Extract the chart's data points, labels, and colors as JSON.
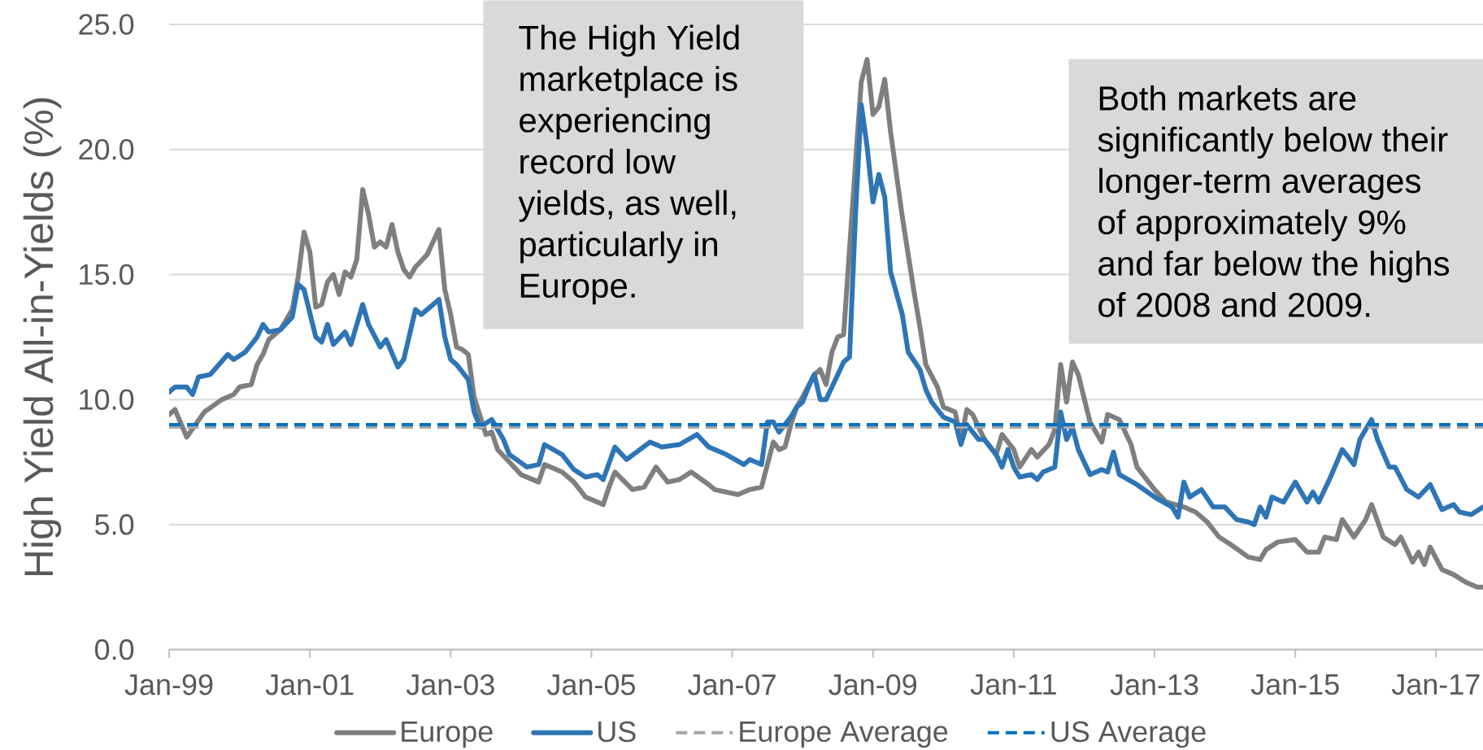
{
  "chart_data": {
    "type": "line",
    "ylabel": "High Yield All-in-Yields (%)",
    "annotations": [
      "The High Yield marketplace is experiencing record low yields, as well, particularly in Europe.",
      "Both markets are significantly below their longer-term averages of approximately 9% and far below the highs of 2008 and 2009."
    ],
    "xlim": [
      "1999-01",
      "2017-09"
    ],
    "xticks": [
      {
        "value": "1999-01",
        "label": "Jan-99"
      },
      {
        "value": "2001-01",
        "label": "Jan-01"
      },
      {
        "value": "2003-01",
        "label": "Jan-03"
      },
      {
        "value": "2005-01",
        "label": "Jan-05"
      },
      {
        "value": "2007-01",
        "label": "Jan-07"
      },
      {
        "value": "2009-01",
        "label": "Jan-09"
      },
      {
        "value": "2011-01",
        "label": "Jan-11"
      },
      {
        "value": "2013-01",
        "label": "Jan-13"
      },
      {
        "value": "2015-01",
        "label": "Jan-15"
      },
      {
        "value": "2017-01",
        "label": "Jan-17"
      }
    ],
    "ylim": [
      0,
      25
    ],
    "yticks": [
      {
        "value": 0,
        "label": "0.0"
      },
      {
        "value": 5,
        "label": "5.0"
      },
      {
        "value": 10,
        "label": "10.0"
      },
      {
        "value": 15,
        "label": "15.0"
      },
      {
        "value": 20,
        "label": "20.0"
      },
      {
        "value": 25,
        "label": "25.0"
      }
    ],
    "grid": "y",
    "legend": "bottom",
    "ref_lines": [
      {
        "axis": "y",
        "value": 8.9,
        "label": "Europe Average",
        "color": "#a6a6a6",
        "line_style": "dashed"
      },
      {
        "axis": "y",
        "value": 9.0,
        "label": "US Average",
        "color": "#0070c0",
        "line_style": "dashed"
      }
    ],
    "series": [
      {
        "name": "Europe",
        "color": "#7f7f7f",
        "x": [
          "1999-01",
          "1999-02",
          "1999-04",
          "1999-07",
          "1999-10",
          "1999-12",
          "2000-01",
          "2000-03",
          "2000-04",
          "2000-05",
          "2000-06",
          "2000-08",
          "2000-10",
          "2000-11",
          "2000-12",
          "2001-01",
          "2001-02",
          "2001-03",
          "2001-04",
          "2001-05",
          "2001-06",
          "2001-07",
          "2001-08",
          "2001-09",
          "2001-10",
          "2001-11",
          "2001-12",
          "2002-01",
          "2002-02",
          "2002-03",
          "2002-04",
          "2002-05",
          "2002-06",
          "2002-07",
          "2002-09",
          "2002-11",
          "2002-12",
          "2003-01",
          "2003-02",
          "2003-03",
          "2003-04",
          "2003-05",
          "2003-07",
          "2003-08",
          "2003-09",
          "2003-11",
          "2004-01",
          "2004-04",
          "2004-05",
          "2004-08",
          "2004-10",
          "2004-12",
          "2005-03",
          "2005-04",
          "2005-05",
          "2005-08",
          "2005-10",
          "2005-12",
          "2006-02",
          "2006-04",
          "2006-06",
          "2006-09",
          "2006-10",
          "2007-02",
          "2007-04",
          "2007-06",
          "2007-08",
          "2007-09",
          "2007-10",
          "2007-11",
          "2007-12",
          "2008-01",
          "2008-03",
          "2008-04",
          "2008-05",
          "2008-06",
          "2008-07",
          "2008-08",
          "2008-10",
          "2008-11",
          "2008-12",
          "2009-01",
          "2009-02",
          "2009-03",
          "2009-04",
          "2009-06",
          "2009-08",
          "2009-09",
          "2009-10",
          "2009-12",
          "2010-01",
          "2010-03",
          "2010-04",
          "2010-05",
          "2010-06",
          "2010-08",
          "2010-10",
          "2010-11",
          "2011-01",
          "2011-02",
          "2011-04",
          "2011-05",
          "2011-07",
          "2011-08",
          "2011-09",
          "2011-10",
          "2011-11",
          "2011-12",
          "2012-02",
          "2012-04",
          "2012-05",
          "2012-07",
          "2012-09",
          "2012-10",
          "2013-01",
          "2013-03",
          "2013-06",
          "2013-08",
          "2013-10",
          "2013-12",
          "2014-02",
          "2014-05",
          "2014-07",
          "2014-08",
          "2014-10",
          "2015-01",
          "2015-03",
          "2015-05",
          "2015-06",
          "2015-08",
          "2015-09",
          "2015-11",
          "2016-01",
          "2016-02",
          "2016-04",
          "2016-06",
          "2016-07",
          "2016-09",
          "2016-10",
          "2016-11",
          "2016-12",
          "2017-02",
          "2017-04",
          "2017-06",
          "2017-08",
          "2017-09"
        ],
        "values": [
          9.4,
          9.6,
          8.5,
          9.5,
          10.0,
          10.2,
          10.5,
          10.6,
          11.4,
          11.8,
          12.4,
          12.8,
          13.6,
          14.9,
          16.7,
          15.9,
          13.7,
          13.8,
          14.7,
          15.0,
          14.2,
          15.1,
          14.9,
          15.6,
          18.4,
          17.4,
          16.1,
          16.3,
          16.1,
          17.0,
          15.9,
          15.2,
          14.9,
          15.3,
          15.8,
          16.8,
          14.4,
          13.4,
          12.1,
          12.0,
          11.8,
          10.1,
          8.6,
          8.7,
          8.0,
          7.5,
          7.0,
          6.7,
          7.4,
          7.1,
          6.7,
          6.1,
          5.8,
          6.5,
          7.1,
          6.4,
          6.5,
          7.3,
          6.7,
          6.8,
          7.1,
          6.6,
          6.4,
          6.2,
          6.4,
          6.5,
          8.3,
          8.0,
          8.1,
          9.0,
          9.7,
          10.1,
          11.0,
          11.2,
          10.6,
          11.9,
          12.5,
          12.6,
          19.4,
          22.7,
          23.6,
          21.4,
          21.7,
          22.8,
          20.7,
          17.3,
          14.3,
          12.9,
          11.4,
          10.5,
          9.7,
          9.5,
          8.4,
          9.6,
          9.4,
          8.4,
          7.8,
          8.6,
          8.0,
          7.3,
          8.0,
          7.7,
          8.2,
          8.8,
          11.4,
          9.9,
          11.5,
          11.0,
          9.1,
          8.3,
          9.4,
          9.2,
          8.2,
          7.3,
          6.4,
          5.9,
          5.7,
          5.5,
          5.1,
          4.5,
          4.2,
          3.7,
          3.6,
          4.0,
          4.3,
          4.4,
          3.9,
          3.9,
          4.5,
          4.4,
          5.2,
          4.5,
          5.2,
          5.8,
          4.5,
          4.2,
          4.5,
          3.5,
          3.9,
          3.4,
          4.1,
          3.2,
          3.0,
          2.7,
          2.5,
          2.5
        ]
      },
      {
        "name": "US",
        "color": "#2e75b6",
        "x": [
          "1999-01",
          "1999-02",
          "1999-04",
          "1999-05",
          "1999-06",
          "1999-08",
          "1999-11",
          "1999-12",
          "2000-02",
          "2000-04",
          "2000-05",
          "2000-06",
          "2000-08",
          "2000-10",
          "2000-11",
          "2000-12",
          "2001-02",
          "2001-03",
          "2001-04",
          "2001-05",
          "2001-07",
          "2001-08",
          "2001-10",
          "2001-11",
          "2002-01",
          "2002-02",
          "2002-04",
          "2002-05",
          "2002-07",
          "2002-08",
          "2002-11",
          "2002-12",
          "2003-01",
          "2003-02",
          "2003-04",
          "2003-05",
          "2003-06",
          "2003-08",
          "2003-10",
          "2003-11",
          "2004-02",
          "2004-04",
          "2004-05",
          "2004-08",
          "2004-10",
          "2004-12",
          "2005-02",
          "2005-03",
          "2005-05",
          "2005-07",
          "2005-11",
          "2006-01",
          "2006-04",
          "2006-07",
          "2006-09",
          "2006-12",
          "2007-03",
          "2007-04",
          "2007-06",
          "2007-07",
          "2007-08",
          "2007-09",
          "2007-11",
          "2007-12",
          "2008-01",
          "2008-02",
          "2008-03",
          "2008-04",
          "2008-05",
          "2008-07",
          "2008-08",
          "2008-09",
          "2008-10",
          "2008-11",
          "2008-12",
          "2009-01",
          "2009-02",
          "2009-03",
          "2009-04",
          "2009-06",
          "2009-07",
          "2009-09",
          "2009-10",
          "2009-11",
          "2010-01",
          "2010-03",
          "2010-04",
          "2010-05",
          "2010-07",
          "2010-08",
          "2010-10",
          "2010-11",
          "2010-12",
          "2011-01",
          "2011-02",
          "2011-04",
          "2011-05",
          "2011-06",
          "2011-08",
          "2011-09",
          "2011-10",
          "2011-11",
          "2011-12",
          "2012-02",
          "2012-04",
          "2012-05",
          "2012-06",
          "2012-07",
          "2012-10",
          "2013-01",
          "2013-04",
          "2013-05",
          "2013-06",
          "2013-07",
          "2013-09",
          "2013-11",
          "2014-01",
          "2014-03",
          "2014-05",
          "2014-06",
          "2014-07",
          "2014-08",
          "2014-09",
          "2014-11",
          "2015-01",
          "2015-03",
          "2015-04",
          "2015-05",
          "2015-07",
          "2015-09",
          "2015-11",
          "2015-12",
          "2016-02",
          "2016-03",
          "2016-05",
          "2016-06",
          "2016-08",
          "2016-10",
          "2016-12",
          "2017-02",
          "2017-04",
          "2017-05",
          "2017-07",
          "2017-09"
        ],
        "values": [
          10.3,
          10.5,
          10.5,
          10.2,
          10.9,
          11.0,
          11.8,
          11.6,
          11.9,
          12.5,
          13.0,
          12.7,
          12.8,
          13.3,
          14.6,
          14.4,
          12.5,
          12.3,
          13.0,
          12.2,
          12.7,
          12.2,
          13.8,
          13.0,
          12.1,
          12.4,
          11.3,
          11.6,
          13.6,
          13.4,
          14.0,
          12.5,
          11.6,
          11.4,
          10.8,
          9.5,
          8.9,
          9.2,
          8.4,
          7.8,
          7.3,
          7.4,
          8.2,
          7.8,
          7.2,
          6.9,
          7.0,
          6.8,
          8.1,
          7.6,
          8.3,
          8.1,
          8.2,
          8.6,
          8.1,
          7.8,
          7.4,
          7.6,
          7.4,
          9.1,
          9.1,
          8.7,
          9.3,
          9.7,
          9.9,
          10.5,
          11.0,
          10.0,
          10.0,
          11.0,
          11.5,
          11.7,
          17.3,
          21.8,
          20.1,
          17.9,
          19.0,
          18.1,
          15.1,
          13.4,
          11.9,
          11.2,
          10.4,
          9.9,
          9.3,
          9.1,
          8.2,
          9.0,
          8.4,
          8.4,
          7.8,
          7.3,
          8.0,
          7.3,
          6.9,
          7.0,
          6.8,
          7.1,
          7.3,
          9.5,
          8.4,
          8.9,
          8.0,
          7.0,
          7.2,
          7.1,
          7.9,
          7.0,
          6.6,
          6.1,
          5.7,
          5.3,
          6.7,
          6.1,
          6.4,
          5.7,
          5.7,
          5.2,
          5.1,
          5.0,
          5.7,
          5.3,
          6.1,
          5.9,
          6.7,
          5.9,
          6.3,
          5.9,
          6.9,
          8.0,
          7.4,
          8.4,
          9.2,
          8.4,
          7.3,
          7.3,
          6.4,
          6.1,
          6.6,
          5.6,
          5.8,
          5.5,
          5.4,
          5.7
        ]
      }
    ]
  }
}
